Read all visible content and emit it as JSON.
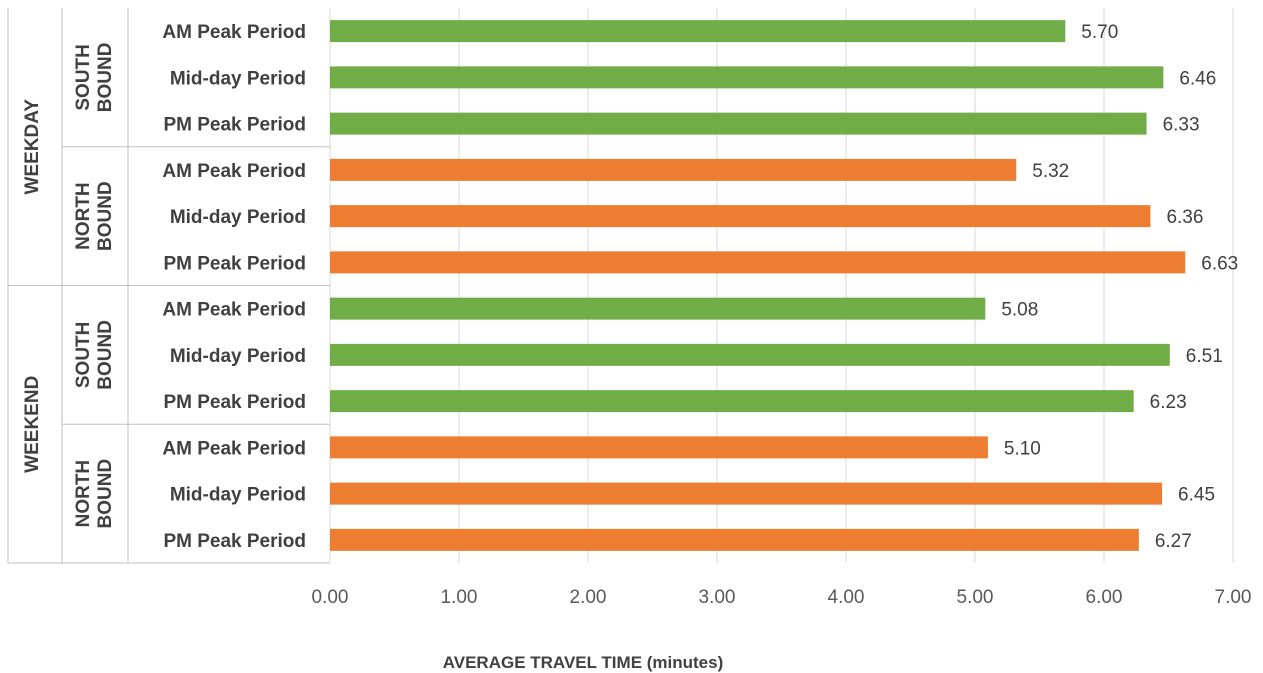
{
  "colors": {
    "southbound": "#70ad47",
    "northbound": "#ed7d31",
    "gridline": "#d9d9d9",
    "separator": "#bfbfbf"
  },
  "chart_data": {
    "type": "bar",
    "orientation": "horizontal",
    "xlabel": "AVERAGE TRAVEL TIME (minutes)",
    "ylabel": "",
    "title": "",
    "xlim": [
      0,
      7
    ],
    "xticks": [
      "0.00",
      "1.00",
      "2.00",
      "3.00",
      "4.00",
      "5.00",
      "6.00",
      "7.00"
    ],
    "grid": "vertical",
    "legend": "none",
    "groups": [
      {
        "label": "WEEKDAY",
        "subgroups": [
          {
            "label_line1": "SOUTH",
            "label_line2": "BOUND",
            "direction": "southbound",
            "bars": [
              {
                "category": "AM Peak Period",
                "value": 5.7,
                "label": "5.70"
              },
              {
                "category": "Mid-day Period",
                "value": 6.46,
                "label": "6.46"
              },
              {
                "category": "PM Peak Period",
                "value": 6.33,
                "label": "6.33"
              }
            ]
          },
          {
            "label_line1": "NORTH",
            "label_line2": "BOUND",
            "direction": "northbound",
            "bars": [
              {
                "category": "AM Peak Period",
                "value": 5.32,
                "label": "5.32"
              },
              {
                "category": "Mid-day Period",
                "value": 6.36,
                "label": "6.36"
              },
              {
                "category": "PM Peak Period",
                "value": 6.63,
                "label": "6.63"
              }
            ]
          }
        ]
      },
      {
        "label": "WEEKEND",
        "subgroups": [
          {
            "label_line1": "SOUTH",
            "label_line2": "BOUND",
            "direction": "southbound",
            "bars": [
              {
                "category": "AM Peak Period",
                "value": 5.08,
                "label": "5.08"
              },
              {
                "category": "Mid-day Period",
                "value": 6.51,
                "label": "6.51"
              },
              {
                "category": "PM Peak Period",
                "value": 6.23,
                "label": "6.23"
              }
            ]
          },
          {
            "label_line1": "NORTH",
            "label_line2": "BOUND",
            "direction": "northbound",
            "bars": [
              {
                "category": "AM Peak Period",
                "value": 5.1,
                "label": "5.10"
              },
              {
                "category": "Mid-day Period",
                "value": 6.45,
                "label": "6.45"
              },
              {
                "category": "PM Peak Period",
                "value": 6.27,
                "label": "6.27"
              }
            ]
          }
        ]
      }
    ]
  }
}
